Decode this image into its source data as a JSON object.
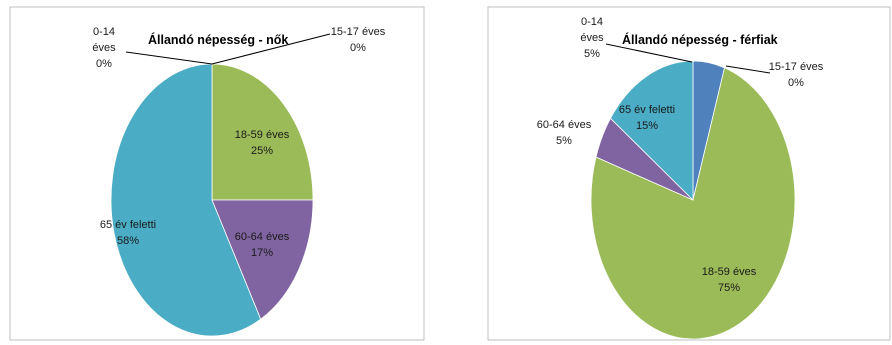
{
  "chart_data": [
    {
      "type": "pie",
      "title": "Állandó népesség - nők",
      "slices": [
        {
          "name": "0-14 éves",
          "value": 0,
          "label": [
            "0-14",
            "éves",
            "0%"
          ],
          "color": "#4f81bd"
        },
        {
          "name": "15-17 éves",
          "value": 0,
          "label": [
            "15-17 éves",
            "0%"
          ],
          "color": "#c0504d"
        },
        {
          "name": "18-59 éves",
          "value": 25,
          "label": [
            "18-59 éves",
            "25%"
          ],
          "color": "#9bbb59"
        },
        {
          "name": "60-64 éves",
          "value": 17,
          "label": [
            "60-64 éves",
            "17%"
          ],
          "color": "#8064a2"
        },
        {
          "name": "65 év feletti",
          "value": 58,
          "label": [
            "65 év feletti",
            "58%"
          ],
          "color": "#4bacc6"
        }
      ]
    },
    {
      "type": "pie",
      "title": "Állandó népesség - férfiak",
      "slices": [
        {
          "name": "0-14 éves",
          "value": 5,
          "label": [
            "0-14",
            "éves",
            "5%"
          ],
          "color": "#4f81bd"
        },
        {
          "name": "15-17 éves",
          "value": 0,
          "label": [
            "15-17 éves",
            "0%"
          ],
          "color": "#c0504d"
        },
        {
          "name": "18-59 éves",
          "value": 75,
          "label": [
            "18-59 éves",
            "75%"
          ],
          "color": "#9bbb59"
        },
        {
          "name": "60-64 éves",
          "value": 5,
          "label": [
            "60-64 éves",
            "5%"
          ],
          "color": "#8064a2"
        },
        {
          "name": "65 év feletti",
          "value": 15,
          "label": [
            "65 év feletti",
            "15%"
          ],
          "color": "#4bacc6"
        }
      ]
    }
  ]
}
